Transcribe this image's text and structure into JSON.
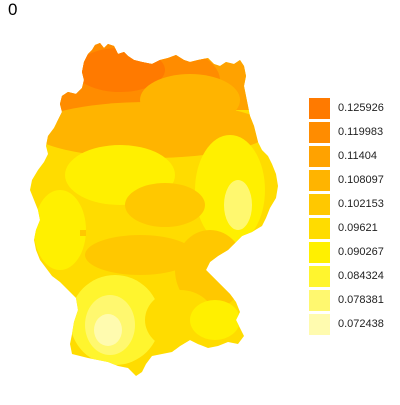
{
  "title": "0",
  "legend": {
    "entries": [
      {
        "label": "0.125926",
        "color": "#FF7A00"
      },
      {
        "label": "0.119983",
        "color": "#FF8C00"
      },
      {
        "label": "0.11404",
        "color": "#FFA200"
      },
      {
        "label": "0.108097",
        "color": "#FFB400"
      },
      {
        "label": "0.102153",
        "color": "#FFC800"
      },
      {
        "label": "0.09621",
        "color": "#FFDC00"
      },
      {
        "label": "0.090267",
        "color": "#FFF000"
      },
      {
        "label": "0.084324",
        "color": "#FFF52E"
      },
      {
        "label": "0.078381",
        "color": "#FFF86F"
      },
      {
        "label": "0.072438",
        "color": "#FFFBAF"
      }
    ]
  },
  "map": {
    "region": "Germany",
    "fill_stops": {
      "high": "#FF7A00",
      "mid": "#FFC800",
      "low": "#FFF86F",
      "lowest": "#FFFBAF"
    }
  }
}
